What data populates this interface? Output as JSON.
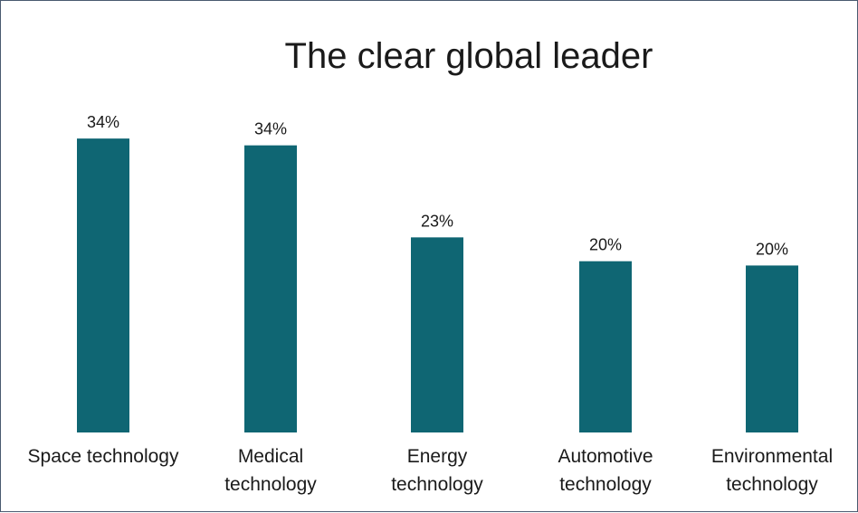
{
  "chart_data": {
    "type": "bar",
    "title": "The clear global leader",
    "categories": [
      [
        "Space technology"
      ],
      [
        "Medical",
        "technology"
      ],
      [
        "Energy",
        "technology"
      ],
      [
        "Automotive",
        "technology"
      ],
      [
        "Environmental",
        "technology"
      ]
    ],
    "values": [
      34.5,
      33.7,
      22.9,
      20.1,
      19.6
    ],
    "data_labels": [
      "34%",
      "34%",
      "23%",
      "20%",
      "20%"
    ],
    "ylim": [
      0,
      36
    ],
    "grid": false,
    "legend": "none",
    "bar_color": "#0f6673"
  }
}
